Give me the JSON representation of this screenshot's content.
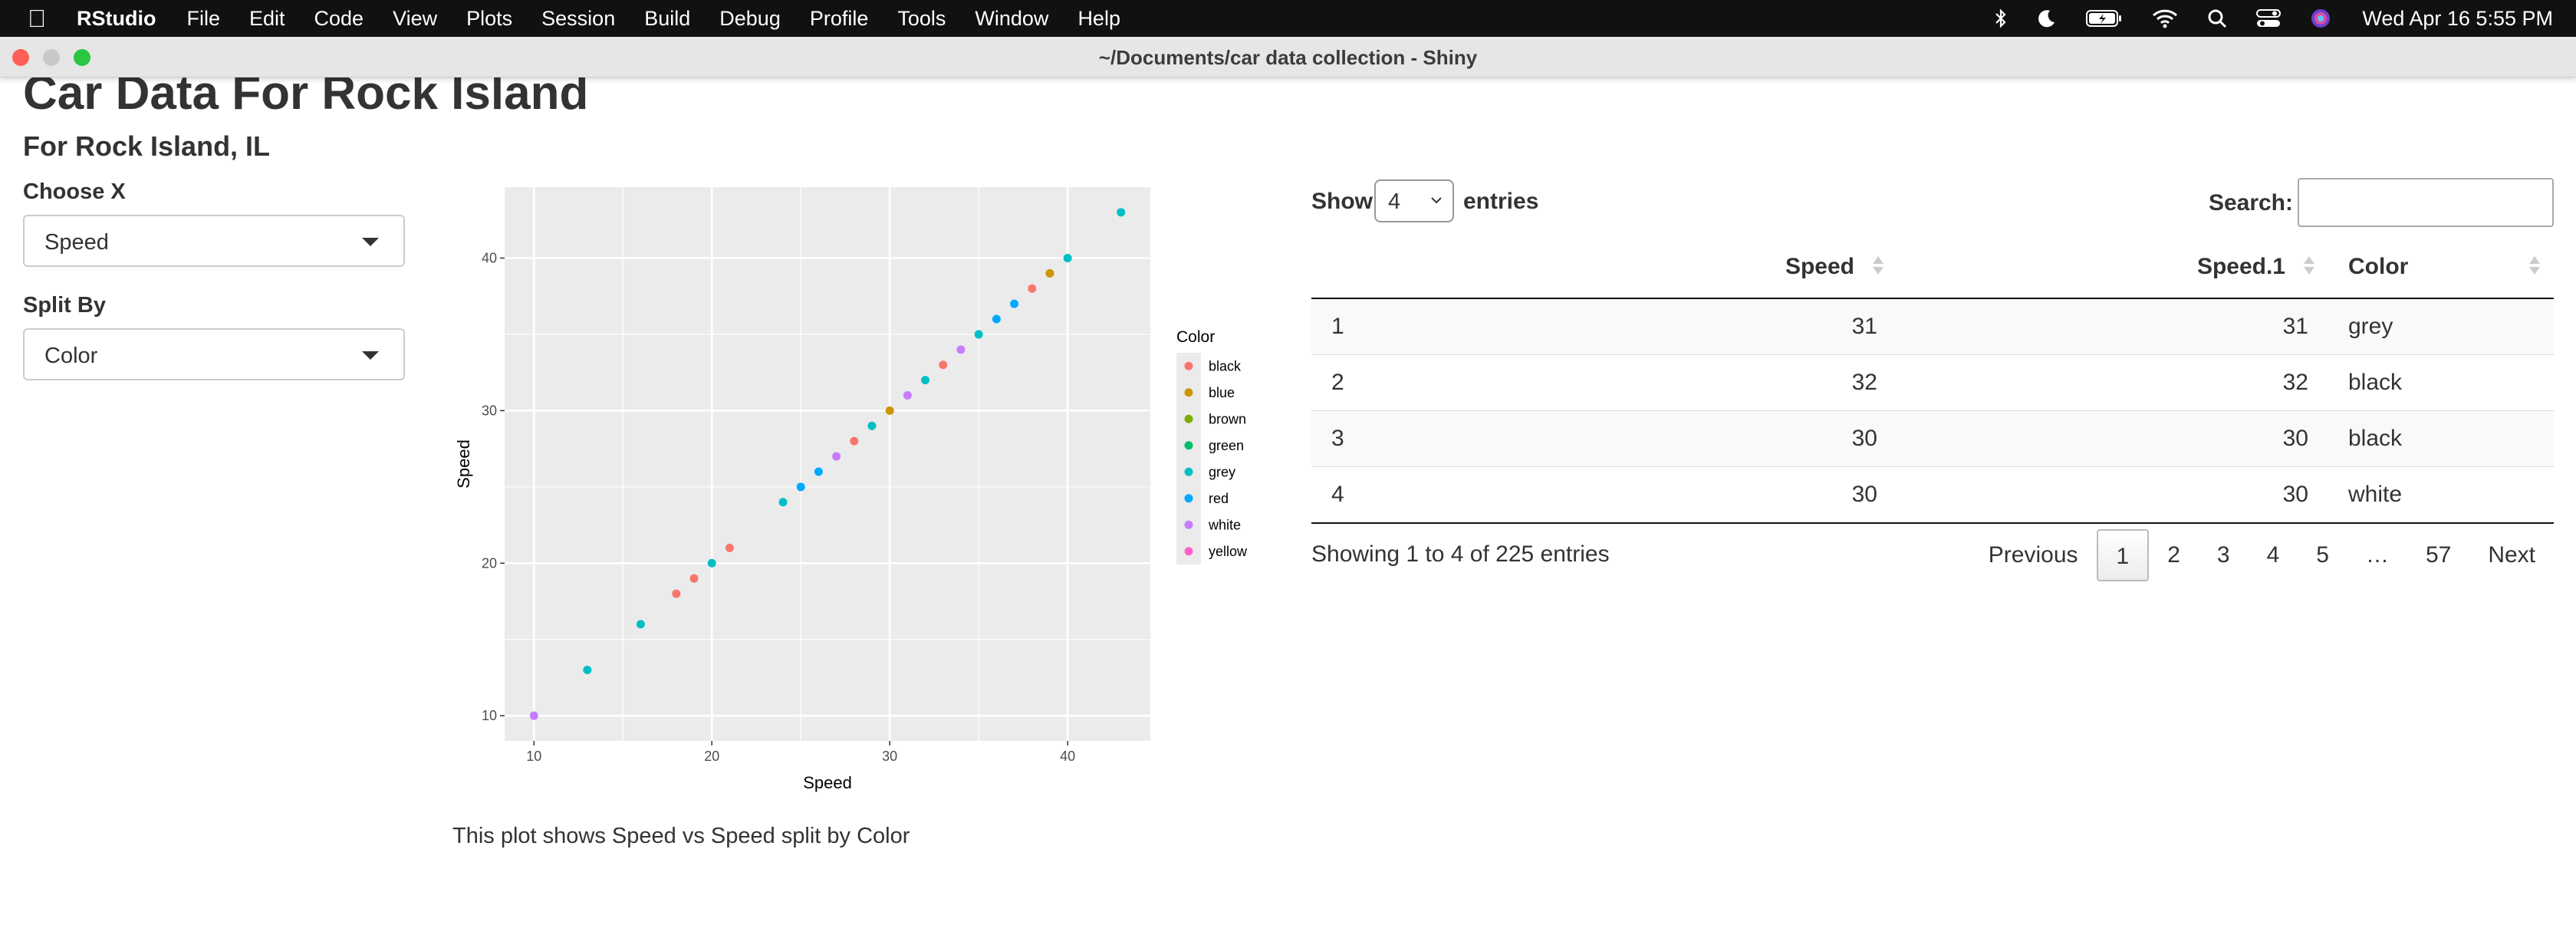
{
  "menubar": {
    "app_name": "RStudio",
    "items": [
      "File",
      "Edit",
      "Code",
      "View",
      "Plots",
      "Session",
      "Build",
      "Debug",
      "Profile",
      "Tools",
      "Window",
      "Help"
    ],
    "clock": "Wed Apr 16  5:55 PM"
  },
  "window": {
    "title": "~/Documents/car data collection - Shiny"
  },
  "page": {
    "title": "Car Data For Rock Island",
    "subtitle": "For Rock Island, IL"
  },
  "controls": {
    "x_label": "Choose X",
    "x_value": "Speed",
    "split_label": "Split By",
    "split_value": "Color"
  },
  "plot": {
    "caption": "This plot shows Speed vs Speed split by Color",
    "background": "#ebebeb",
    "legend_title": "Color"
  },
  "chart_data": {
    "type": "scatter",
    "xlabel": "Speed",
    "ylabel": "Speed",
    "xlim": [
      8.35,
      44.65
    ],
    "ylim": [
      8.35,
      44.65
    ],
    "x_ticks": [
      10,
      20,
      30,
      40
    ],
    "y_ticks": [
      10,
      20,
      30,
      40
    ],
    "grid": true,
    "legend_placement": "right",
    "series": [
      {
        "name": "black",
        "color": "#F8766D",
        "x": [
          18,
          19,
          21,
          28,
          33,
          38
        ],
        "y": [
          18,
          19,
          21,
          28,
          33,
          38
        ]
      },
      {
        "name": "blue",
        "color": "#CD9600",
        "x": [
          30,
          39
        ],
        "y": [
          30,
          39
        ]
      },
      {
        "name": "brown",
        "color": "#7CAE00",
        "x": [],
        "y": []
      },
      {
        "name": "green",
        "color": "#00BE67",
        "x": [],
        "y": []
      },
      {
        "name": "grey",
        "color": "#00BFC4",
        "x": [
          13,
          16,
          20,
          24,
          29,
          32,
          35,
          40,
          43
        ],
        "y": [
          13,
          16,
          20,
          24,
          29,
          32,
          35,
          40,
          43
        ]
      },
      {
        "name": "red",
        "color": "#00A9FF",
        "x": [
          25,
          26,
          36,
          37
        ],
        "y": [
          25,
          26,
          36,
          37
        ]
      },
      {
        "name": "white",
        "color": "#C77CFF",
        "x": [
          10,
          27,
          31,
          34
        ],
        "y": [
          10,
          27,
          31,
          34
        ]
      },
      {
        "name": "yellow",
        "color": "#FF61CC",
        "x": [],
        "y": []
      }
    ]
  },
  "table": {
    "show_label": "Show",
    "length_value": "4",
    "entries_label": "entries",
    "search_label": "Search:",
    "columns": [
      "",
      "Speed",
      "Speed.1",
      "Color"
    ],
    "rows": [
      [
        "1",
        "31",
        "31",
        "grey"
      ],
      [
        "2",
        "32",
        "32",
        "black"
      ],
      [
        "3",
        "30",
        "30",
        "black"
      ],
      [
        "4",
        "30",
        "30",
        "white"
      ]
    ],
    "info": "Showing 1 to 4 of 225 entries",
    "pagination": {
      "previous": "Previous",
      "pages": [
        "1",
        "2",
        "3",
        "4",
        "5",
        "…",
        "57"
      ],
      "current": "1",
      "next": "Next"
    }
  }
}
